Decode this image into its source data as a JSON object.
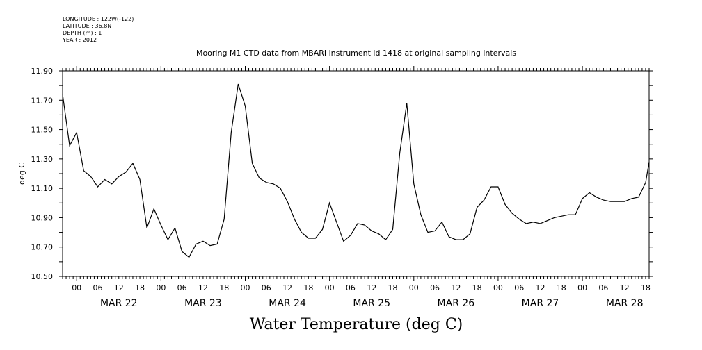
{
  "header": {
    "longitude": "LONGITUDE : 122W(-122)",
    "latitude": "LATITUDE : 36.8N",
    "depth": "DEPTH (m) : 1",
    "year": "YEAR : 2012"
  },
  "chart_data": {
    "type": "line",
    "title": "Mooring M1 CTD data from MBARI instrument id 1418 at original sampling intervals",
    "xlabel": "Water Temperature (deg C)",
    "ylabel": "deg C",
    "x_units": "hours since MAR 22 2012 00:00",
    "xlim": [
      -4,
      163
    ],
    "ylim": [
      10.5,
      11.9
    ],
    "y_ticks": [
      "10.50",
      "10.70",
      "10.90",
      "11.10",
      "11.30",
      "11.50",
      "11.70",
      "11.90"
    ],
    "hour_tick_labels": [
      "00",
      "06",
      "12",
      "18"
    ],
    "day_labels": [
      "MAR 22",
      "MAR 23",
      "MAR 24",
      "MAR 25",
      "MAR 26",
      "MAR 27",
      "MAR 28"
    ],
    "grid": false,
    "series": [
      {
        "name": "Water Temperature",
        "x_start": -4,
        "x_step": 2,
        "values": [
          11.74,
          11.39,
          11.48,
          11.22,
          11.18,
          11.11,
          11.16,
          11.13,
          11.18,
          11.21,
          11.27,
          11.16,
          10.83,
          10.96,
          10.85,
          10.75,
          10.83,
          10.67,
          10.63,
          10.72,
          10.74,
          10.71,
          10.72,
          10.89,
          11.48,
          11.81,
          11.66,
          11.27,
          11.17,
          11.14,
          11.13,
          11.1,
          11.01,
          10.89,
          10.8,
          10.76,
          10.76,
          10.82,
          11.0,
          10.87,
          10.74,
          10.78,
          10.86,
          10.85,
          10.81,
          10.79,
          10.75,
          10.82,
          11.34,
          11.68,
          11.13,
          10.92,
          10.8,
          10.81,
          10.87,
          10.77,
          10.75,
          10.75,
          10.79,
          10.97,
          11.02,
          11.11,
          11.11,
          10.99,
          10.93,
          10.89,
          10.86,
          10.87,
          10.86,
          10.88,
          10.9,
          10.91,
          10.92,
          10.92,
          11.03,
          11.07,
          11.04,
          11.02,
          11.01,
          11.01,
          11.01,
          11.03,
          11.04,
          11.14,
          11.28
        ]
      }
    ]
  }
}
